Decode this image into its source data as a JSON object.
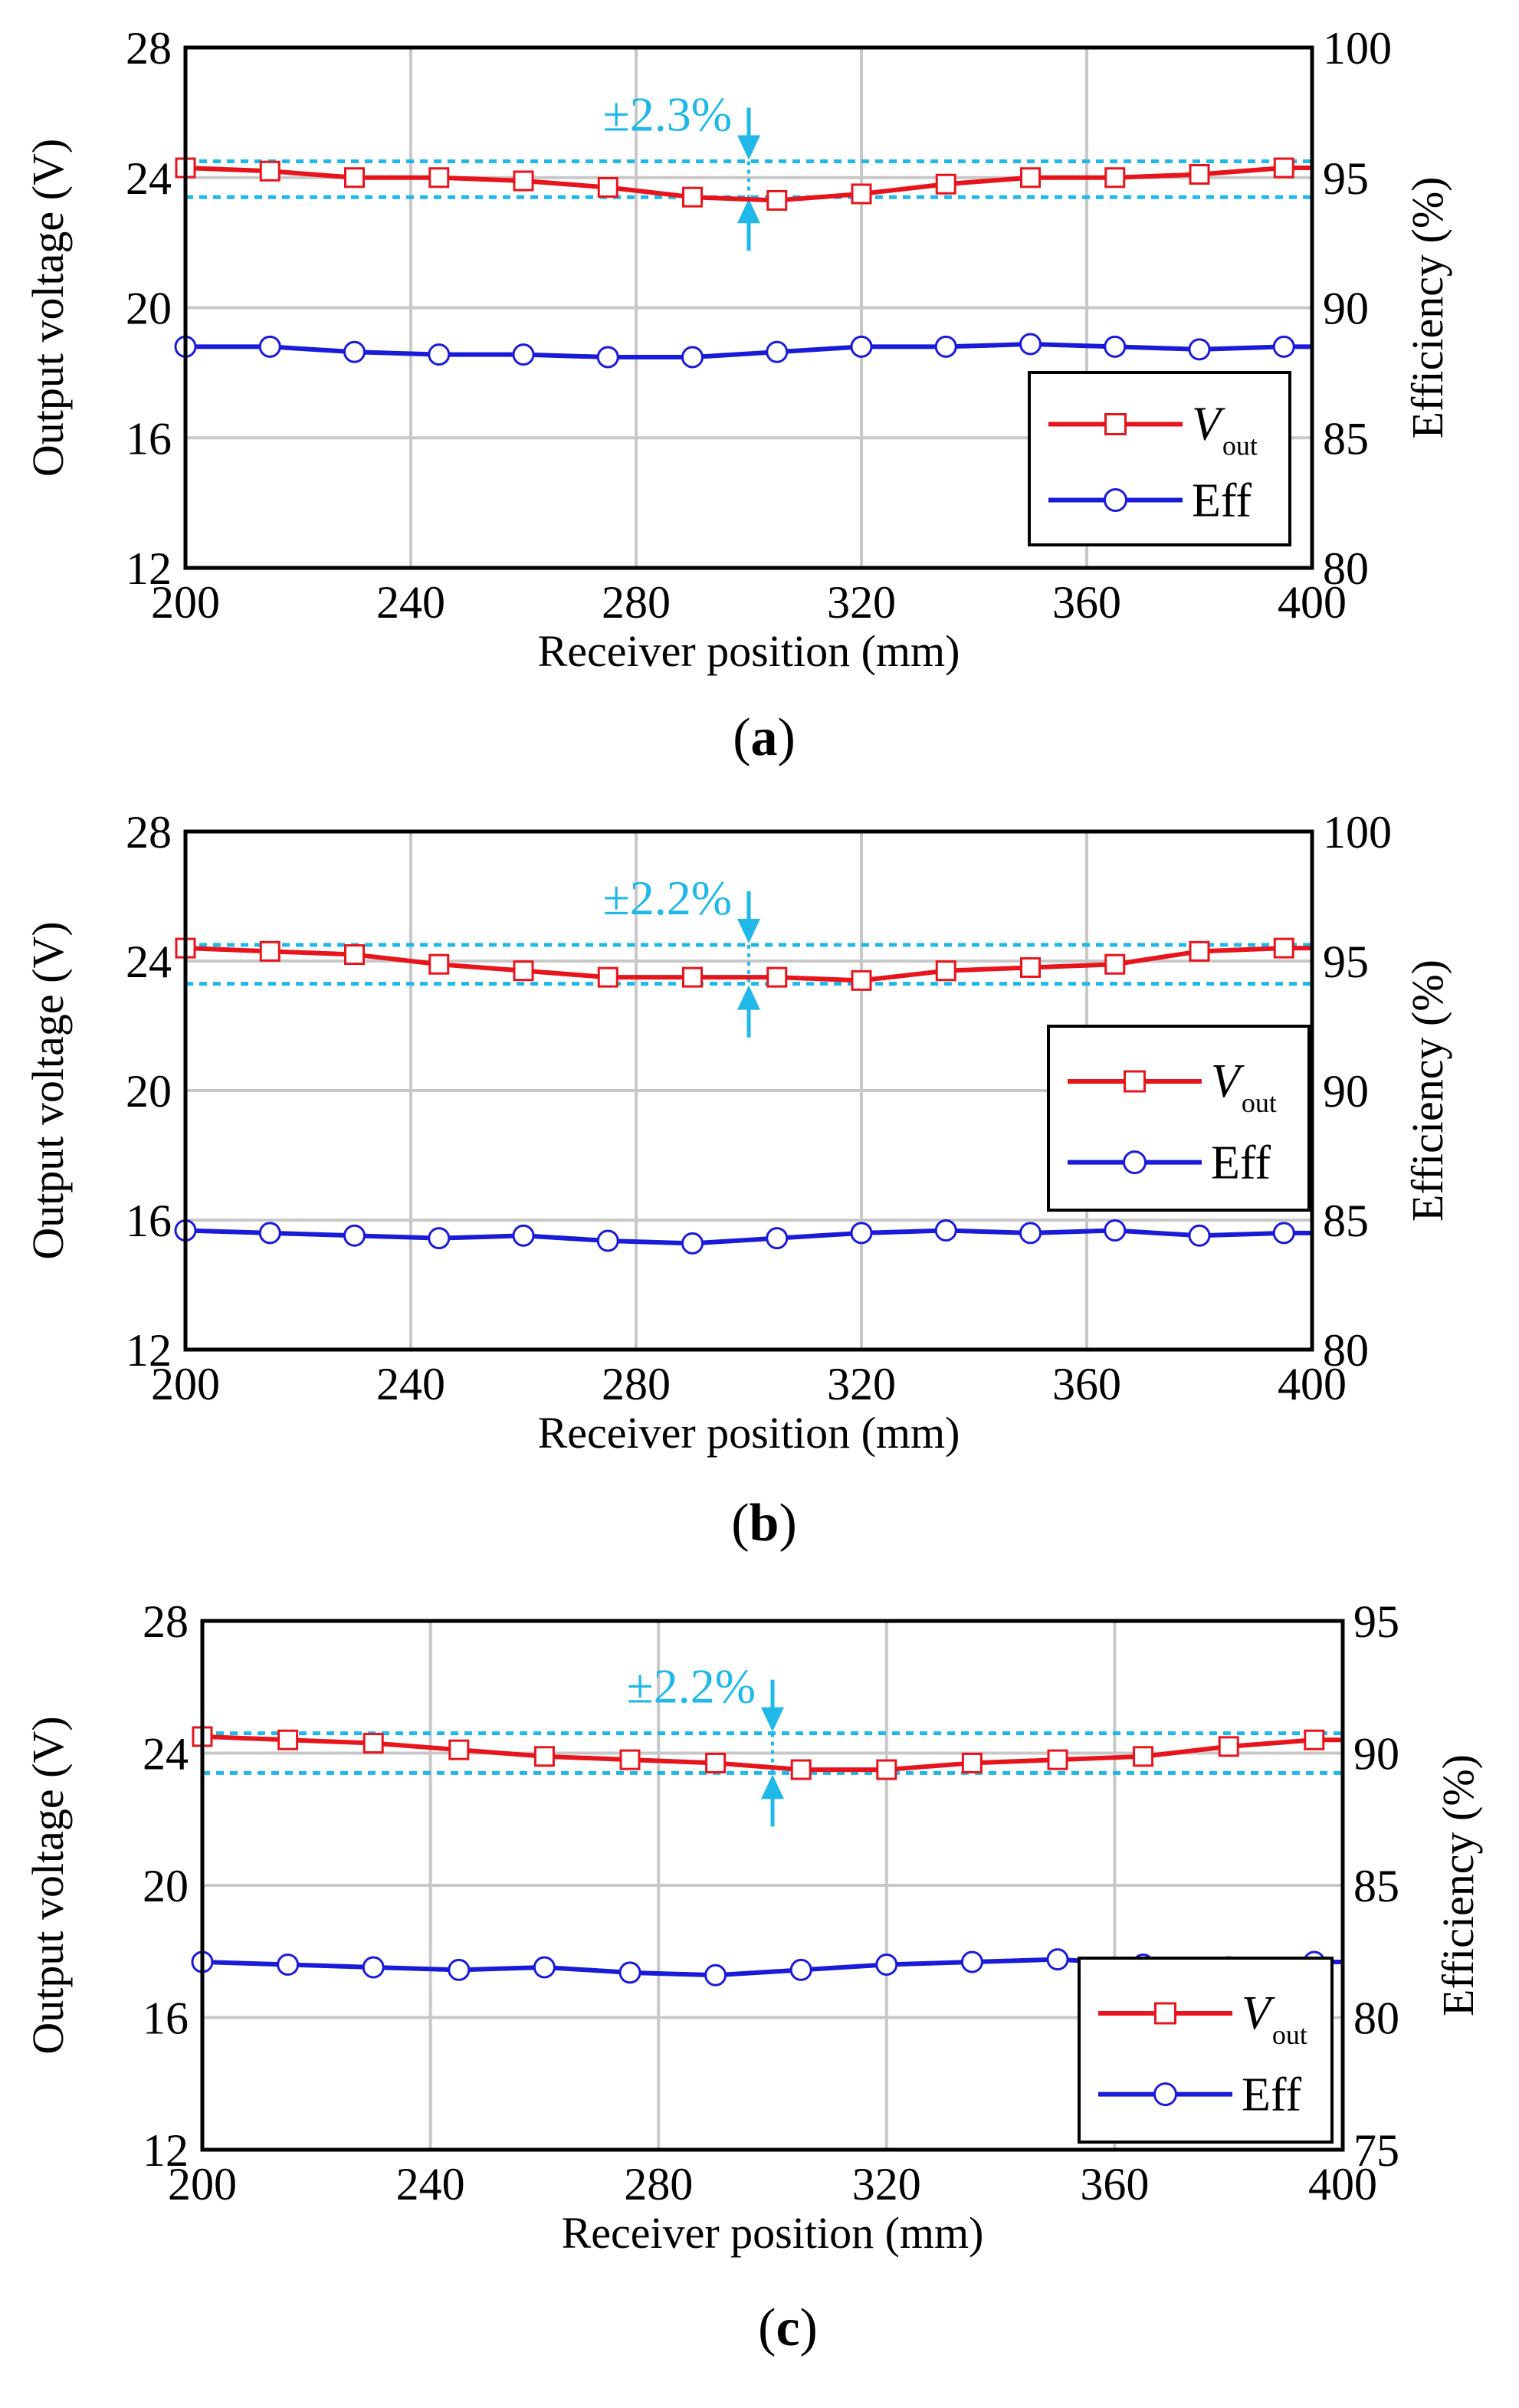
{
  "panels": [
    {
      "caption": "a",
      "tolerance_label": "±2.3%",
      "chart_data": {
        "type": "line",
        "x": [
          200,
          215,
          230,
          245,
          260,
          275,
          290,
          305,
          320,
          335,
          350,
          365,
          380,
          395
        ],
        "xlabel": "Receiver position (mm)",
        "xlim": [
          200,
          400
        ],
        "xticks": [
          200,
          240,
          280,
          320,
          360,
          400
        ],
        "ylabel_left": "Output voltage (V)",
        "ylim_left": [
          12,
          28
        ],
        "yticks_left": [
          12,
          16,
          20,
          24,
          28
        ],
        "ylabel_right": "Efficiency (%)",
        "ylim_right": [
          80,
          100
        ],
        "yticks_right": [
          80,
          85,
          90,
          95,
          100
        ],
        "series": [
          {
            "name": "V_out",
            "axis": "left",
            "color": "#e8141c",
            "marker": "square",
            "values": [
              24.3,
              24.2,
              24.0,
              24.0,
              23.9,
              23.7,
              23.4,
              23.3,
              23.5,
              23.8,
              24.0,
              24.0,
              24.1,
              24.3
            ]
          },
          {
            "name": "Eff",
            "axis": "right",
            "color": "#1a1ad9",
            "marker": "circle",
            "values": [
              88.5,
              88.5,
              88.3,
              88.2,
              88.2,
              88.1,
              88.1,
              88.3,
              88.5,
              88.5,
              88.6,
              88.5,
              88.4,
              88.5
            ]
          }
        ],
        "reference_lines_left": [
          24.5,
          23.4
        ],
        "tolerance_arrow_x": 300,
        "grid": true,
        "legend_position": "bottom-right"
      }
    },
    {
      "caption": "b",
      "tolerance_label": "±2.2%",
      "chart_data": {
        "type": "line",
        "x": [
          200,
          215,
          230,
          245,
          260,
          275,
          290,
          305,
          320,
          335,
          350,
          365,
          380,
          395
        ],
        "xlabel": "Receiver position (mm)",
        "xlim": [
          200,
          400
        ],
        "xticks": [
          200,
          240,
          280,
          320,
          360,
          400
        ],
        "ylabel_left": "Output voltage (V)",
        "ylim_left": [
          12,
          28
        ],
        "yticks_left": [
          12,
          16,
          20,
          24,
          28
        ],
        "ylabel_right": "Efficiency (%)",
        "ylim_right": [
          80,
          100
        ],
        "yticks_right": [
          80,
          85,
          90,
          95,
          100
        ],
        "series": [
          {
            "name": "V_out",
            "axis": "left",
            "color": "#e8141c",
            "marker": "square",
            "values": [
              24.4,
              24.3,
              24.2,
              23.9,
              23.7,
              23.5,
              23.5,
              23.5,
              23.4,
              23.7,
              23.8,
              23.9,
              24.3,
              24.4
            ]
          },
          {
            "name": "Eff",
            "axis": "right",
            "color": "#1a1ad9",
            "marker": "circle",
            "values": [
              84.6,
              84.5,
              84.4,
              84.3,
              84.4,
              84.2,
              84.1,
              84.3,
              84.5,
              84.6,
              84.5,
              84.6,
              84.4,
              84.5
            ]
          }
        ],
        "reference_lines_left": [
          24.5,
          23.3
        ],
        "tolerance_arrow_x": 300,
        "grid": true,
        "legend_position": "middle-right"
      }
    },
    {
      "caption": "c",
      "tolerance_label": "±2.2%",
      "chart_data": {
        "type": "line",
        "x": [
          200,
          215,
          230,
          245,
          260,
          275,
          290,
          305,
          320,
          335,
          350,
          365,
          380,
          395
        ],
        "xlabel": "Receiver position (mm)",
        "xlim": [
          200,
          400
        ],
        "xticks": [
          200,
          240,
          280,
          320,
          360,
          400
        ],
        "ylabel_left": "Output voltage (V)",
        "ylim_left": [
          12,
          28
        ],
        "yticks_left": [
          12,
          16,
          20,
          24,
          28
        ],
        "ylabel_right": "Efficiency (%)",
        "ylim_right": [
          75,
          95
        ],
        "yticks_right": [
          75,
          80,
          85,
          90,
          95
        ],
        "series": [
          {
            "name": "V_out",
            "axis": "left",
            "color": "#e8141c",
            "marker": "square",
            "values": [
              24.5,
              24.4,
              24.3,
              24.1,
              23.9,
              23.8,
              23.7,
              23.5,
              23.5,
              23.7,
              23.8,
              23.9,
              24.2,
              24.4
            ]
          },
          {
            "name": "Eff",
            "axis": "right",
            "color": "#1a1ad9",
            "marker": "circle",
            "values": [
              82.1,
              82.0,
              81.9,
              81.8,
              81.9,
              81.7,
              81.6,
              81.8,
              82.0,
              82.1,
              82.2,
              82.0,
              81.9,
              82.1
            ]
          }
        ],
        "reference_lines_left": [
          24.6,
          23.4
        ],
        "tolerance_arrow_x": 300,
        "grid": true,
        "legend_position": "bottom-right"
      }
    }
  ],
  "legend_labels": {
    "vout_main": "V",
    "vout_sub": "out",
    "eff": "Eff"
  },
  "colors": {
    "vout": "#e8141c",
    "eff": "#1a1ad9",
    "reference": "#1fb8e8",
    "grid": "#c8c8c8"
  }
}
